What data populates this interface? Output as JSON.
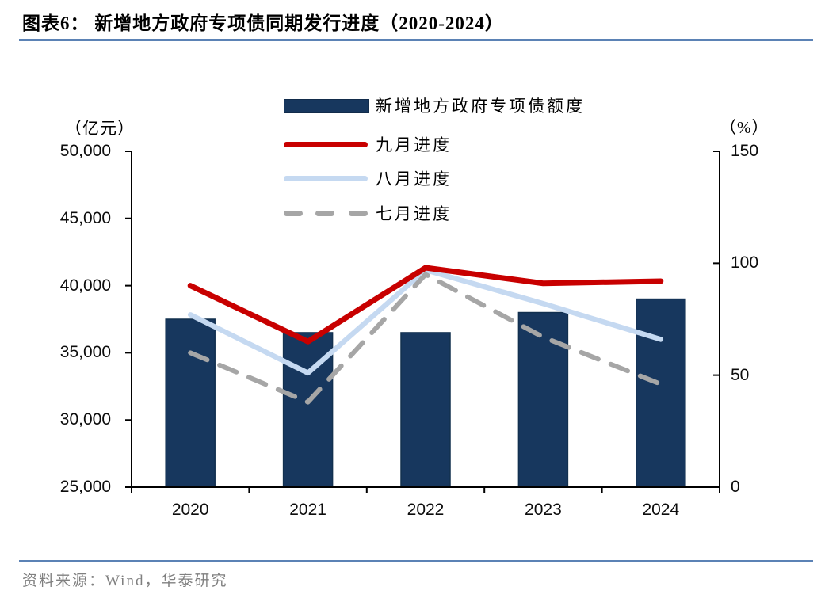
{
  "header": {
    "title": "图表6：  新增地方政府专项债同期发行进度（2020-2024）"
  },
  "footer": {
    "source": "资料来源：Wind，华泰研究"
  },
  "colors": {
    "rule_blue": "#5b82b5",
    "axis_black": "#000000",
    "source_gray": "#808080"
  },
  "chart_data": {
    "type": "bar+line combo",
    "categories": [
      "2020",
      "2021",
      "2022",
      "2023",
      "2024"
    ],
    "left_axis": {
      "label": "（亿元）",
      "min": 25000,
      "max": 50000,
      "step": 5000,
      "tick_labels": [
        "25,000",
        "30,000",
        "35,000",
        "40,000",
        "45,000",
        "50,000"
      ]
    },
    "right_axis": {
      "label": "（%）",
      "min": 0,
      "max": 150,
      "step": 50,
      "tick_labels": [
        "0",
        "50",
        "100",
        "150"
      ]
    },
    "bar_series": {
      "name": "新增地方政府专项债额度",
      "axis": "left",
      "unit": "亿元",
      "values": [
        37500,
        36500,
        36500,
        38000,
        39000
      ],
      "color": "#17375e"
    },
    "line_series": [
      {
        "name": "九月进度",
        "axis": "right",
        "unit": "%",
        "values": [
          90,
          65,
          98,
          91,
          92
        ],
        "color": "#c80000",
        "dash": false
      },
      {
        "name": "八月进度",
        "axis": "right",
        "unit": "%",
        "values": [
          77,
          51,
          97,
          82,
          66
        ],
        "color": "#c5d9f1",
        "dash": false
      },
      {
        "name": "七月进度",
        "axis": "right",
        "unit": "%",
        "values": [
          60,
          38,
          95,
          67,
          46
        ],
        "color": "#a6a6a6",
        "dash": true
      }
    ],
    "legend_position": "top-center",
    "grid": false
  }
}
